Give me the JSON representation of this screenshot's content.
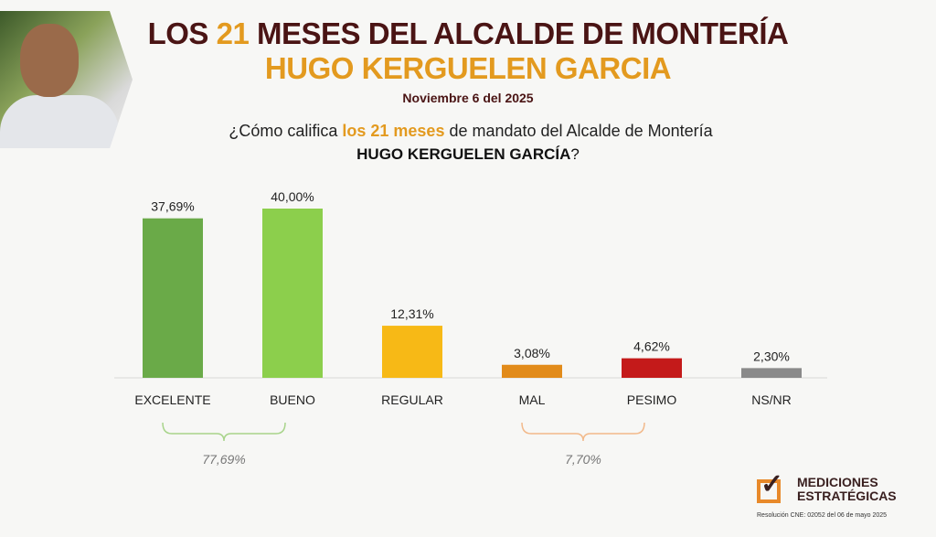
{
  "header": {
    "title_pre": "LOS ",
    "title_num": "21",
    "title_post": " MESES DEL ALCALDE DE MONTERÍA",
    "subtitle": "HUGO KERGUELEN GARCIA",
    "date": "Noviembre 6 del 2025",
    "question_pre": "¿Cómo califica ",
    "question_hl": "los 21 meses",
    "question_post": " de mandato del Alcalde de Montería",
    "question_name": "HUGO KERGUELEN GARCÍA",
    "question_end": "?"
  },
  "chart_data": {
    "type": "bar",
    "categories": [
      "EXCELENTE",
      "BUENO",
      "REGULAR",
      "MAL",
      "PESIMO",
      "NS/NR"
    ],
    "values": [
      37.69,
      40.0,
      12.31,
      3.08,
      4.62,
      2.3
    ],
    "labels": [
      "37,69%",
      "40,00%",
      "12,31%",
      "3,08%",
      "4,62%",
      "2,30%"
    ],
    "colors": [
      "#6aaa48",
      "#8ccf4c",
      "#f7b916",
      "#e28b1a",
      "#c41a1a",
      "#8a8a8a"
    ],
    "ylim": [
      0,
      40
    ],
    "groups": [
      {
        "label": "77,69%",
        "from": 0,
        "to": 1,
        "color": "#a8d48a"
      },
      {
        "label": "7,70%",
        "from": 3,
        "to": 4,
        "color": "#f2b98a"
      }
    ]
  },
  "logo": {
    "line1": "MEDICIONES",
    "line2": "ESTRATÉGICAS",
    "resolution": "Resolución CNE: 02052 del 06 de mayo 2025"
  }
}
